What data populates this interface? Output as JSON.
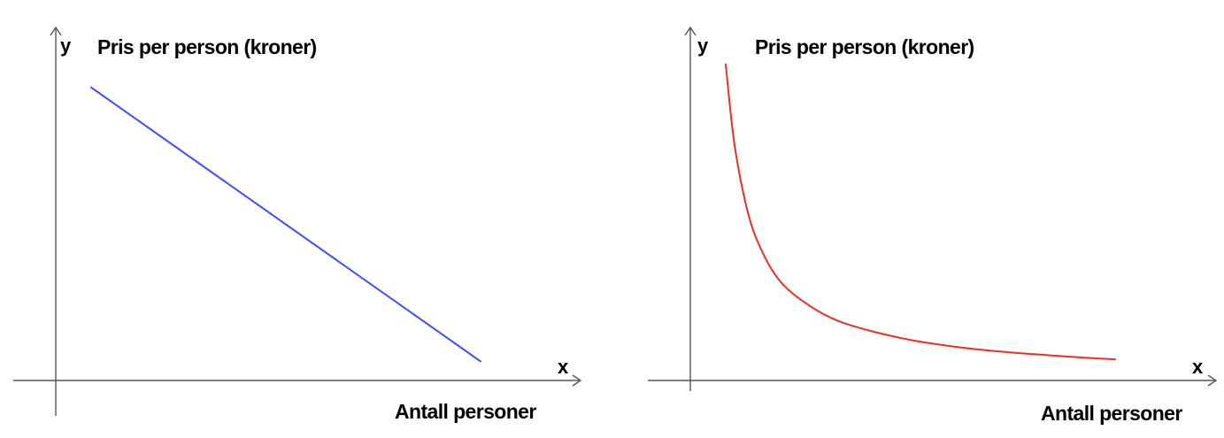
{
  "chart_data": [
    {
      "type": "line",
      "title": "",
      "ylabel": "Pris per person (kroner)",
      "xlabel": "Antall personer",
      "x_axis_symbol": "x",
      "y_axis_symbol": "y",
      "tick_labels": false,
      "grid": false,
      "xlim": [
        0,
        10
      ],
      "ylim": [
        0,
        10
      ],
      "series": [
        {
          "color": "#3d4dff",
          "shape": "linear decreasing",
          "x": [
            0.8,
            9.6
          ],
          "y": [
            9.2,
            0.6
          ]
        }
      ]
    },
    {
      "type": "line",
      "title": "",
      "ylabel": "Pris per person (kroner)",
      "xlabel": "Antall personer",
      "x_axis_symbol": "x",
      "y_axis_symbol": "y",
      "tick_labels": false,
      "grid": false,
      "xlim": [
        0,
        10
      ],
      "ylim": [
        0,
        10
      ],
      "series": [
        {
          "color": "#e8302a",
          "shape": "inverse proportional (y = k / x)",
          "x": [
            0.8,
            1.0,
            1.3,
            1.6,
            2.0,
            2.5,
            3.2,
            4.0,
            5.0,
            6.0,
            7.0,
            8.0,
            9.0,
            9.6
          ],
          "y": [
            9.4,
            7.0,
            5.0,
            3.9,
            3.0,
            2.4,
            1.85,
            1.5,
            1.2,
            1.0,
            0.86,
            0.76,
            0.67,
            0.63
          ]
        }
      ]
    }
  ]
}
